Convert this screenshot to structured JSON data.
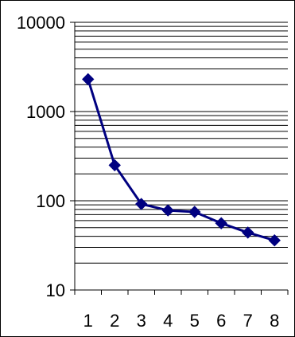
{
  "chart_data": {
    "type": "line",
    "title": "",
    "xlabel": "",
    "ylabel": "",
    "y_scale": "log",
    "ylim": [
      10,
      10000
    ],
    "x": [
      1,
      2,
      3,
      4,
      5,
      6,
      7,
      8
    ],
    "x_tick_labels": [
      "1",
      "2",
      "3",
      "4",
      "5",
      "6",
      "7",
      "8"
    ],
    "y_tick_labels": [
      "10000",
      "1000",
      "100",
      "10"
    ],
    "y_tick_values": [
      10000,
      1000,
      100,
      10
    ],
    "series": [
      {
        "values": [
          2300,
          250,
          92,
          78,
          75,
          56,
          44,
          36
        ],
        "color": "#000080",
        "marker": "diamond"
      }
    ],
    "grid": "horizontal minor and major lines",
    "legend": "none"
  }
}
